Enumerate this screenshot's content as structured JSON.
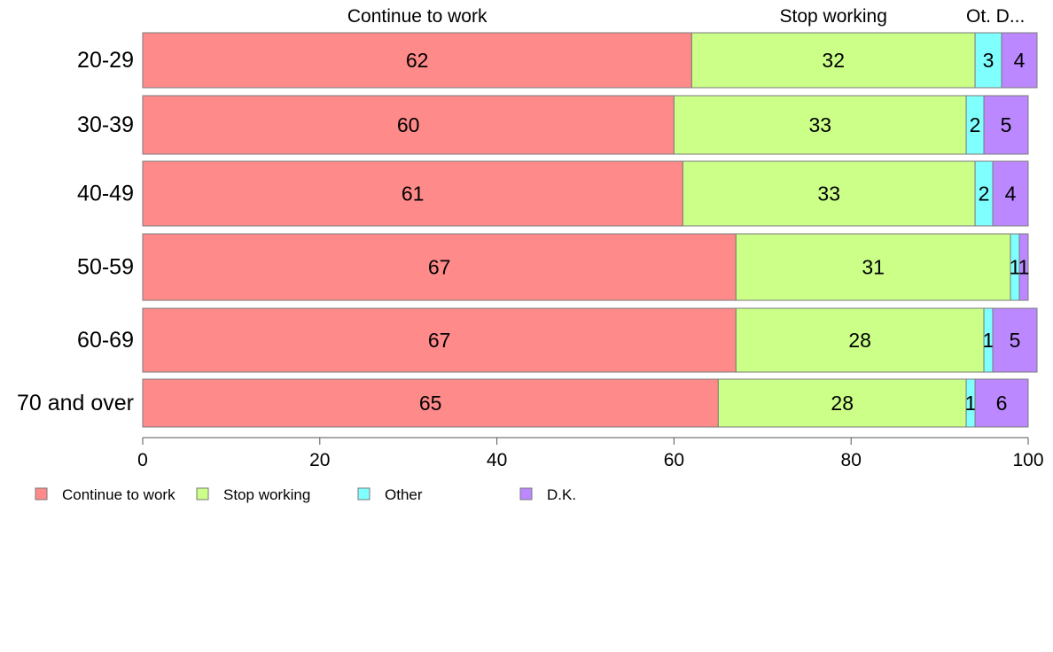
{
  "chart_data": {
    "type": "bar",
    "orientation": "horizontal",
    "stacked": true,
    "categories": [
      "20-29",
      "30-39",
      "40-49",
      "50-59",
      "60-69",
      "70 and over"
    ],
    "series": [
      {
        "name": "Continue to work",
        "color": "#ff8a8a",
        "values": [
          62,
          60,
          61,
          67,
          67,
          65
        ]
      },
      {
        "name": "Stop working",
        "color": "#ccff88",
        "values": [
          32,
          33,
          33,
          31,
          28,
          28
        ]
      },
      {
        "name": "Other",
        "color": "#80ffff",
        "values": [
          3,
          2,
          2,
          1,
          1,
          1
        ]
      },
      {
        "name": "D.K.",
        "color": "#bb88ff",
        "values": [
          4,
          5,
          4,
          1,
          5,
          6
        ]
      }
    ],
    "top_labels": [
      "Continue to work",
      "Stop working",
      "Ot.",
      "D..."
    ],
    "x_ticks": [
      0,
      20,
      40,
      60,
      80,
      100
    ],
    "xlim": [
      0,
      100
    ],
    "grid": false,
    "legend_position": "bottom-left"
  }
}
